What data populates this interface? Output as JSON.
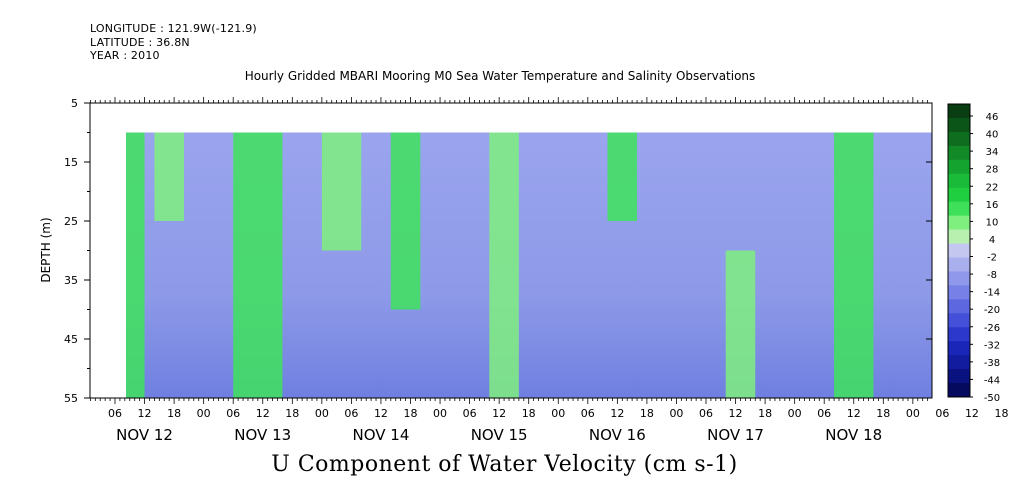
{
  "header": {
    "longitude": "LONGITUDE : 121.9W(-121.9)",
    "latitude": "LATITUDE : 36.8N",
    "year": "YEAR : 2010"
  },
  "chart_data": {
    "type": "heatmap",
    "title": "Hourly Gridded MBARI Mooring M0 Sea Water Temperature and Salinity Observations",
    "bottom_title": "U Component of Water Velocity (cm s-1)",
    "ylabel": "DEPTH (m)",
    "y_ticks": [
      5,
      15,
      25,
      35,
      45,
      55
    ],
    "ylim": [
      5,
      55
    ],
    "y_inverted": true,
    "x_hour_ticks": [
      "06",
      "12",
      "18",
      "00",
      "06",
      "12",
      "18",
      "00",
      "06",
      "12",
      "18",
      "00",
      "06",
      "12",
      "18",
      "00",
      "06",
      "12",
      "18",
      "00",
      "06",
      "12",
      "18",
      "00",
      "06",
      "12",
      "18",
      "00",
      "06",
      "12",
      "18",
      "00"
    ],
    "x_day_labels": [
      "NOV 12",
      "NOV 13",
      "NOV 14",
      "NOV 15",
      "NOV 16",
      "NOV 17",
      "NOV 18"
    ],
    "colorbar": {
      "labels": [
        "46",
        "40",
        "34",
        "28",
        "22",
        "16",
        "10",
        "4",
        "-2",
        "-8",
        "-14",
        "-20",
        "-26",
        "-32",
        "-38",
        "-44",
        "-50"
      ],
      "colors": [
        "#0a3d12",
        "#0c5518",
        "#0f6d20",
        "#128a28",
        "#15a330",
        "#19bb38",
        "#1fcf40",
        "#3ee05a",
        "#7ff07f",
        "#b8f0b0",
        "#c4c8f0",
        "#aab0ee",
        "#8f98ea",
        "#7680e6",
        "#5d68e0",
        "#4450d8",
        "#2c38cc",
        "#1a26b8",
        "#111c9e",
        "#0a1280",
        "#060a5e"
      ]
    },
    "data_region": {
      "start_depth": 10,
      "end_depth": 55
    },
    "green_columns": [
      {
        "day": "NOV 12",
        "hours": [
          0,
          12
        ],
        "depths": [
          10,
          55
        ]
      },
      {
        "day": "NOV 12",
        "hours": [
          14,
          20
        ],
        "depths": [
          10,
          25
        ]
      },
      {
        "day": "NOV 13",
        "hours": [
          6,
          16
        ],
        "depths": [
          10,
          55
        ]
      },
      {
        "day": "NOV 14",
        "hours": [
          0,
          8
        ],
        "depths": [
          10,
          30
        ]
      },
      {
        "day": "NOV 14",
        "hours": [
          14,
          20
        ],
        "depths": [
          10,
          40
        ]
      },
      {
        "day": "NOV 15",
        "hours": [
          10,
          16
        ],
        "depths": [
          10,
          55
        ]
      },
      {
        "day": "NOV 16",
        "hours": [
          10,
          16
        ],
        "depths": [
          10,
          25
        ]
      },
      {
        "day": "NOV 17",
        "hours": [
          10,
          16
        ],
        "depths": [
          30,
          55
        ]
      },
      {
        "day": "NOV 18",
        "hours": [
          8,
          16
        ],
        "depths": [
          10,
          55
        ]
      }
    ]
  }
}
